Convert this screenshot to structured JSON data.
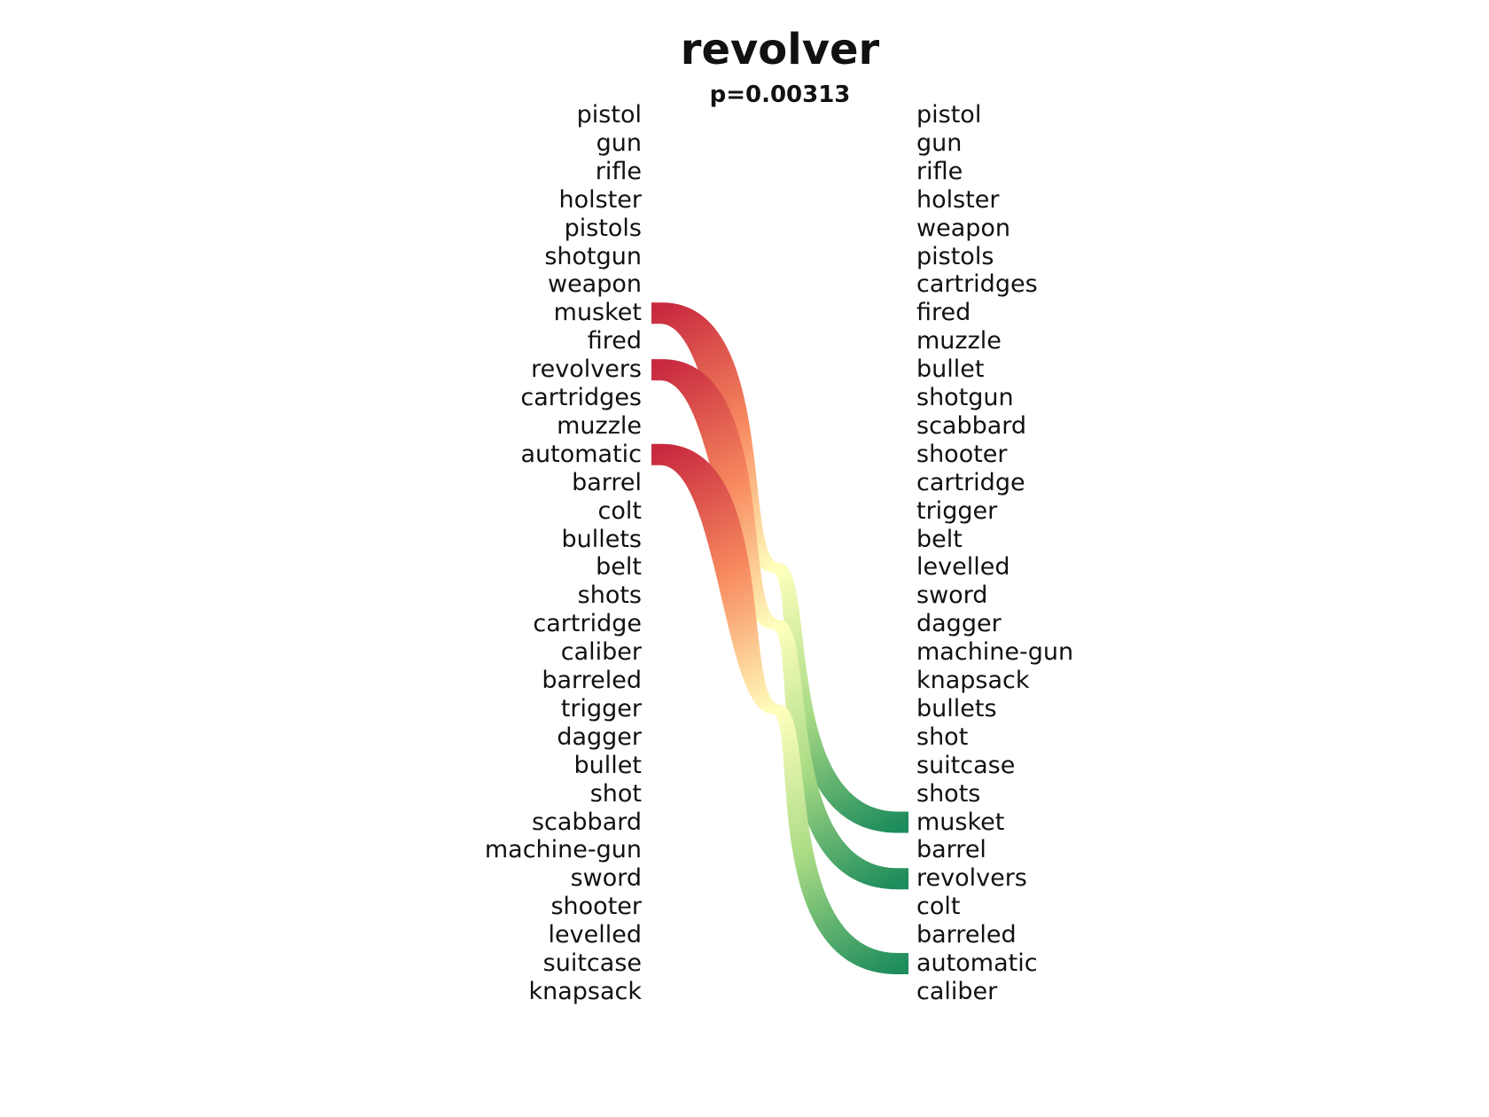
{
  "title": "revolver",
  "subtitle": "p=0.00313",
  "left_ranking": [
    "pistol",
    "gun",
    "rifle",
    "holster",
    "pistols",
    "shotgun",
    "weapon",
    "musket",
    "fired",
    "revolvers",
    "cartridges",
    "muzzle",
    "automatic",
    "barrel",
    "colt",
    "bullets",
    "belt",
    "shots",
    "cartridge",
    "caliber",
    "barreled",
    "trigger",
    "dagger",
    "bullet",
    "shot",
    "scabbard",
    "machine-gun",
    "sword",
    "shooter",
    "levelled",
    "suitcase",
    "knapsack"
  ],
  "right_ranking": [
    "pistol",
    "gun",
    "rifle",
    "holster",
    "weapon",
    "pistols",
    "cartridges",
    "fired",
    "muzzle",
    "bullet",
    "shotgun",
    "scabbard",
    "shooter",
    "cartridge",
    "trigger",
    "belt",
    "levelled",
    "sword",
    "dagger",
    "machine-gun",
    "knapsack",
    "bullets",
    "shot",
    "suitcase",
    "shots",
    "musket",
    "barrel",
    "revolvers",
    "colt",
    "barreled",
    "automatic",
    "caliber"
  ],
  "links": [
    {
      "word": "musket",
      "left_rank": 8,
      "right_rank": 26
    },
    {
      "word": "revolvers",
      "left_rank": 10,
      "right_rank": 28
    },
    {
      "word": "automatic",
      "left_rank": 13,
      "right_rank": 31
    }
  ],
  "colors": {
    "start": "#c8293f",
    "mid_high": "#f88b5f",
    "mid": "#ffffbe",
    "mid_low": "#a9db84",
    "end": "#1d8c5c"
  }
}
